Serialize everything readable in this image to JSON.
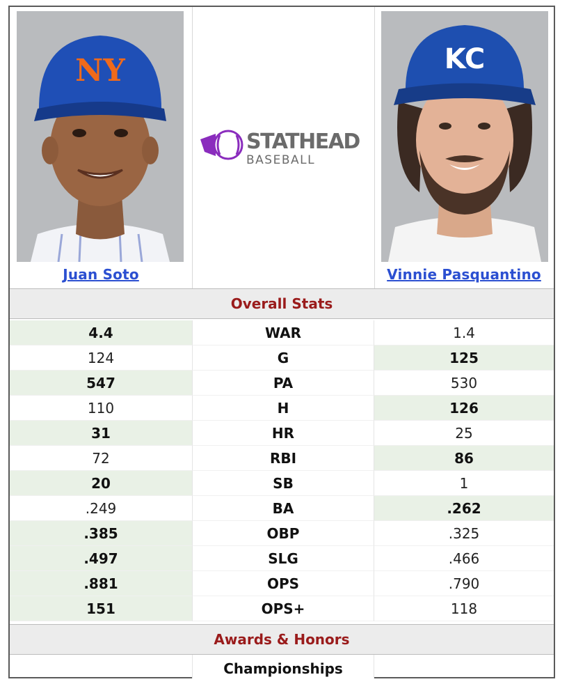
{
  "players": {
    "left": {
      "name": "Juan Soto",
      "cap_logo_text": "NY"
    },
    "right": {
      "name": "Vinnie Pasquantino",
      "cap_logo_text": "KC"
    }
  },
  "logo": {
    "brand": "STATHEAD",
    "sub": "BASEBALL",
    "colors": {
      "purple": "#8a2cbd",
      "gray": "#6b6b6b"
    }
  },
  "sections": {
    "overall": "Overall Stats",
    "awards": "Awards & Honors"
  },
  "stats": [
    {
      "label": "WAR",
      "left": "4.4",
      "right": "1.4",
      "winner": "left"
    },
    {
      "label": "G",
      "left": "124",
      "right": "125",
      "winner": "right"
    },
    {
      "label": "PA",
      "left": "547",
      "right": "530",
      "winner": "left"
    },
    {
      "label": "H",
      "left": "110",
      "right": "126",
      "winner": "right"
    },
    {
      "label": "HR",
      "left": "31",
      "right": "25",
      "winner": "left"
    },
    {
      "label": "RBI",
      "left": "72",
      "right": "86",
      "winner": "right"
    },
    {
      "label": "SB",
      "left": "20",
      "right": "1",
      "winner": "left"
    },
    {
      "label": "BA",
      "left": ".249",
      "right": ".262",
      "winner": "right"
    },
    {
      "label": "OBP",
      "left": ".385",
      "right": ".325",
      "winner": "left"
    },
    {
      "label": "SLG",
      "left": ".497",
      "right": ".466",
      "winner": "left"
    },
    {
      "label": "OPS",
      "left": ".881",
      "right": ".790",
      "winner": "left"
    },
    {
      "label": "OPS+",
      "left": "151",
      "right": "118",
      "winner": "left"
    }
  ],
  "awards": {
    "championships_label": "Championships"
  },
  "colors": {
    "section_title": "#9a1b1b",
    "link": "#2b4fd1",
    "winner_bg": "#e9f1e6"
  }
}
